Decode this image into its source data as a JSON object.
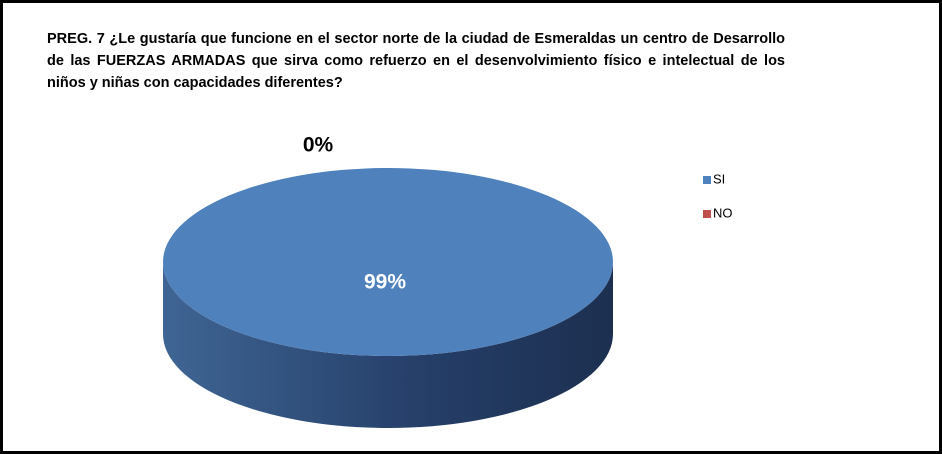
{
  "chart_data": {
    "type": "pie",
    "title": "PREG. 7 ¿Le gustaría que funcione en el sector norte de la ciudad de Esmeraldas un centro de Desarrollo de las FUERZAS ARMADAS que sirva como refuerzo en el desenvolvimiento físico e intelectual de los niños y niñas con capacidades diferentes?",
    "categories": [
      "SI",
      "NO"
    ],
    "values": [
      99,
      0
    ],
    "value_labels": [
      "99%",
      "0%"
    ],
    "colors": [
      "#4f81bd",
      "#c0504d"
    ],
    "legend": "right"
  }
}
